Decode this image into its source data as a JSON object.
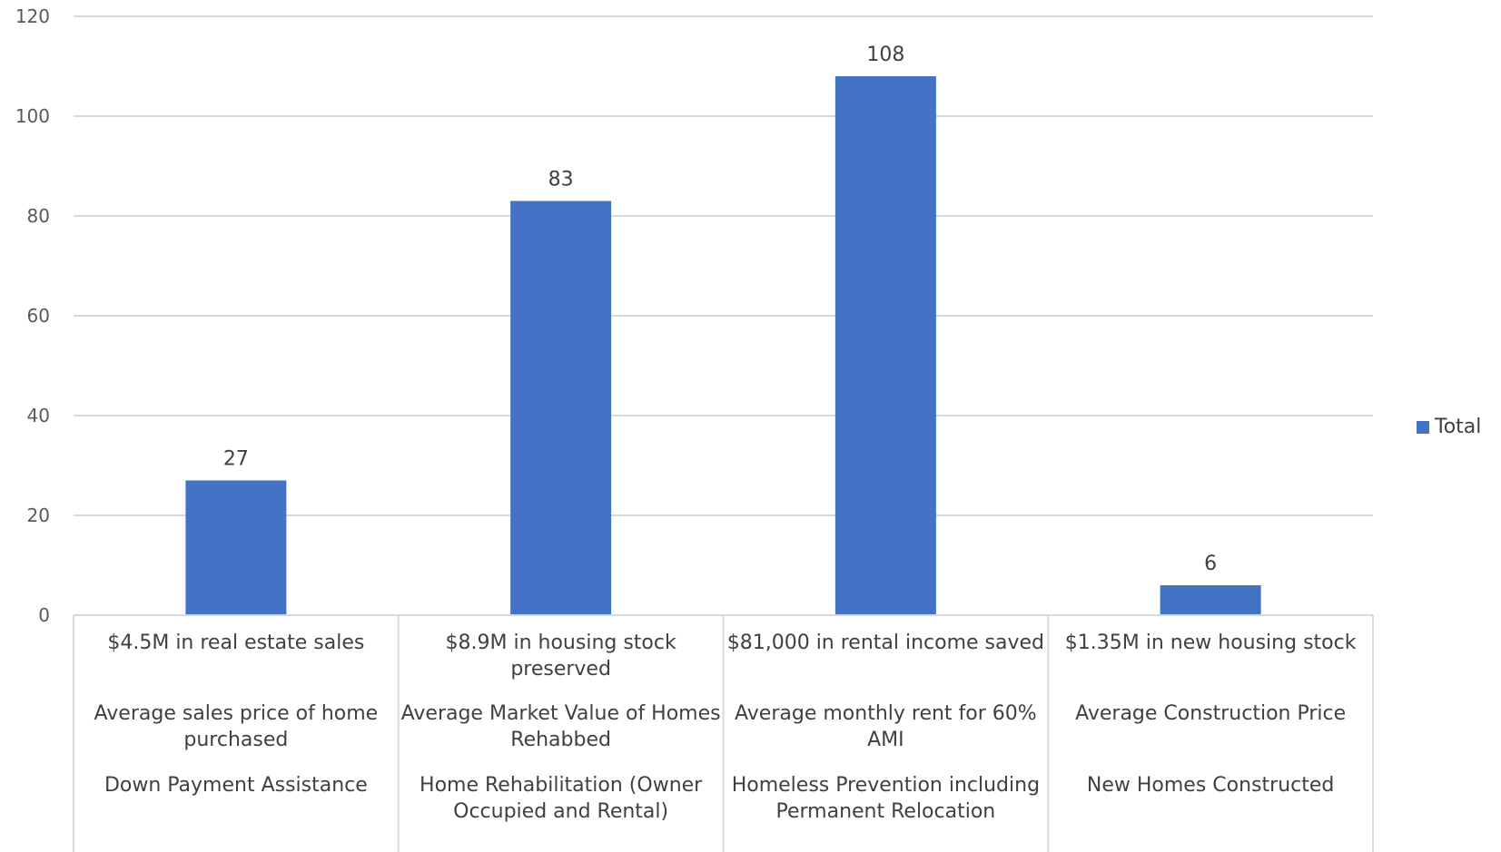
{
  "chart_data": {
    "type": "bar",
    "categories": [
      [
        "$4.5M in real estate sales",
        "Average sales price of home purchased",
        "Down Payment Assistance"
      ],
      [
        "$8.9M in housing stock preserved",
        "Average Market Value of Homes Rehabbed",
        "Home Rehabilitation (Owner Occupied and Rental)"
      ],
      [
        "$81,000 in rental income saved",
        "Average monthly rent for 60% AMI",
        "Homeless Prevention including Permanent Relocation"
      ],
      [
        "$1.35M in new housing stock",
        "Average Construction Price",
        "New Homes Constructed"
      ]
    ],
    "series": [
      {
        "name": "Total",
        "values": [
          27,
          83,
          108,
          6
        ],
        "color": "#4472C4"
      }
    ],
    "yticks": [
      0,
      20,
      40,
      60,
      80,
      100,
      120
    ],
    "ylim": [
      0,
      120
    ],
    "grid": true,
    "legend": "right",
    "data_labels": [
      "27",
      "83",
      "108",
      "6"
    ]
  }
}
